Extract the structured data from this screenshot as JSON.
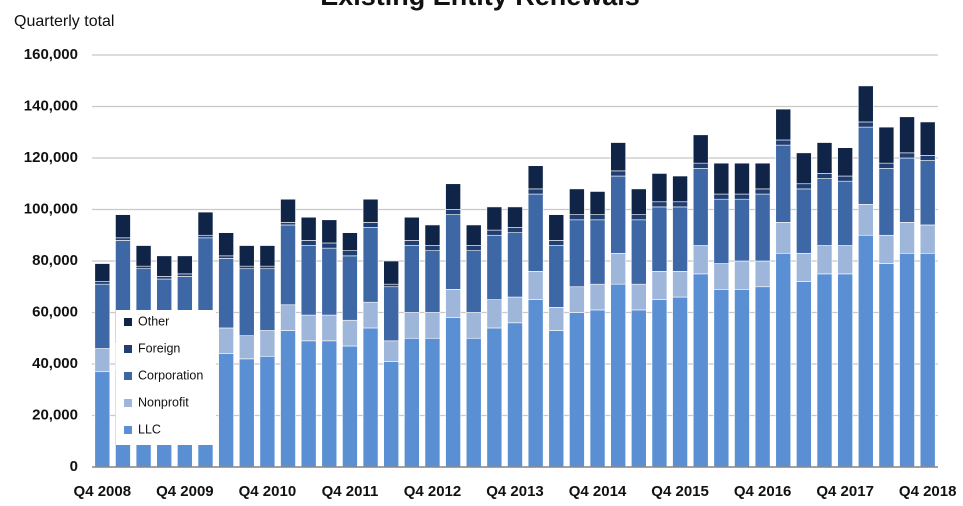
{
  "chart_data": {
    "type": "stacked_bar",
    "title": "Existing Entity Renewals",
    "y_label": "Quarterly total",
    "categories": [
      "Q4 2008",
      null,
      null,
      null,
      "Q4 2009",
      null,
      null,
      null,
      "Q4 2010",
      null,
      null,
      null,
      "Q4 2011",
      null,
      null,
      null,
      "Q4 2012",
      null,
      null,
      null,
      "Q4 2013",
      null,
      null,
      null,
      "Q4 2014",
      null,
      null,
      null,
      "Q4 2015",
      null,
      null,
      null,
      "Q4 2016",
      null,
      null,
      null,
      "Q4 2017",
      null,
      null,
      null,
      "Q4 2018"
    ],
    "series": [
      {
        "name": "LLC",
        "color": "#5b8fd4",
        "values": [
          37000,
          38000,
          39000,
          40000,
          40000,
          41000,
          44000,
          42000,
          43000,
          53000,
          49000,
          49000,
          47000,
          54000,
          41000,
          50000,
          50000,
          58000,
          50000,
          54000,
          56000,
          65000,
          53000,
          60000,
          61000,
          71000,
          61000,
          65000,
          66000,
          75000,
          69000,
          69000,
          70000,
          83000,
          72000,
          75000,
          75000,
          90000,
          79000,
          83000,
          83000
        ]
      },
      {
        "name": "Nonprofit",
        "color": "#9fb6db",
        "values": [
          9000,
          10000,
          10000,
          10000,
          10000,
          10000,
          10000,
          9000,
          10000,
          10000,
          10000,
          10000,
          10000,
          10000,
          8000,
          10000,
          10000,
          11000,
          10000,
          11000,
          10000,
          11000,
          9000,
          10000,
          10000,
          12000,
          10000,
          11000,
          10000,
          11000,
          10000,
          11000,
          10000,
          12000,
          11000,
          11000,
          11000,
          12000,
          11000,
          12000,
          11000
        ]
      },
      {
        "name": "Corporation",
        "color": "#3d67a5",
        "values": [
          25000,
          40000,
          28000,
          23000,
          24000,
          38000,
          27000,
          26000,
          24000,
          31000,
          27000,
          26000,
          25000,
          29000,
          21000,
          26000,
          24000,
          29000,
          24000,
          25000,
          25000,
          30000,
          24000,
          26000,
          25000,
          30000,
          25000,
          25000,
          25000,
          30000,
          25000,
          24000,
          26000,
          30000,
          25000,
          26000,
          25000,
          30000,
          26000,
          25000,
          25000
        ]
      },
      {
        "name": "Foreign",
        "color": "#1f3e72",
        "values": [
          1000,
          1000,
          1000,
          1000,
          1000,
          1000,
          1000,
          1000,
          1000,
          1000,
          2000,
          2000,
          2000,
          2000,
          1000,
          2000,
          2000,
          2000,
          2000,
          2000,
          2000,
          2000,
          2000,
          2000,
          2000,
          2000,
          2000,
          2000,
          2000,
          2000,
          2000,
          2000,
          2000,
          2000,
          2000,
          2000,
          2000,
          2000,
          2000,
          2000,
          2000
        ]
      },
      {
        "name": "Other",
        "color": "#0f2447",
        "values": [
          7000,
          9000,
          8000,
          8000,
          7000,
          9000,
          9000,
          8000,
          8000,
          9000,
          9000,
          9000,
          7000,
          9000,
          9000,
          9000,
          8000,
          10000,
          8000,
          9000,
          8000,
          9000,
          10000,
          10000,
          9000,
          11000,
          10000,
          11000,
          10000,
          11000,
          12000,
          12000,
          10000,
          12000,
          12000,
          12000,
          11000,
          14000,
          14000,
          14000,
          13000
        ]
      }
    ],
    "ylim": [
      0,
      160000
    ],
    "yticks": [
      0,
      {
        "value": 20000,
        "label": "20,000"
      },
      {
        "value": 40000,
        "label": "40,000"
      },
      {
        "value": 60000,
        "label": "60,000"
      },
      {
        "value": 80000,
        "label": "80,000"
      },
      {
        "value": 100000,
        "label": "100,000"
      },
      {
        "value": 120000,
        "label": "120,000"
      },
      {
        "value": 140000,
        "label": "140,000"
      },
      {
        "value": 160000,
        "label": "160,000"
      }
    ],
    "grid": true,
    "legend": "lower-left"
  }
}
